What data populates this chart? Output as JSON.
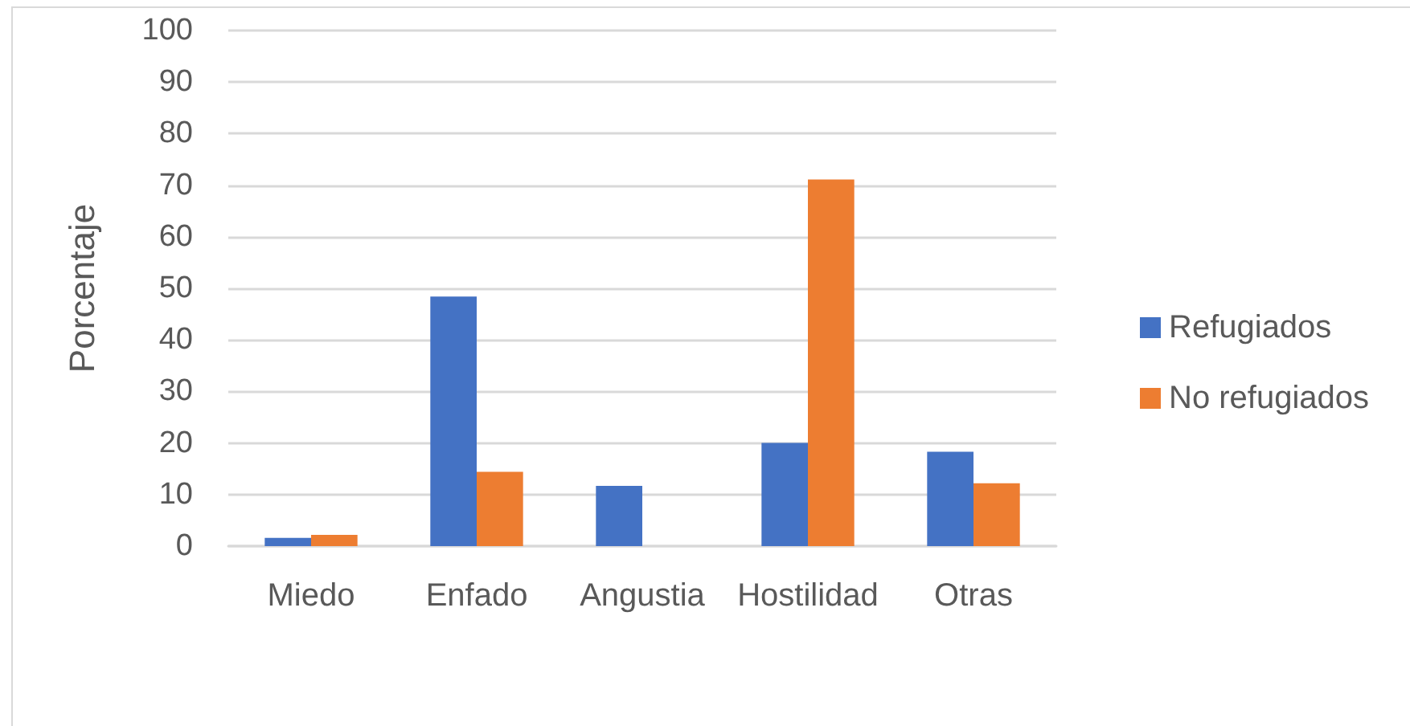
{
  "chart_data": {
    "type": "bar",
    "ylabel": "Porcentaje",
    "categories": [
      "Miedo",
      "Enfado",
      "Angustia",
      "Hostilidad",
      "Otras"
    ],
    "series": [
      {
        "name": "Refugiados",
        "color": "#4472c4",
        "values": [
          1.6,
          48.4,
          11.7,
          20,
          18.3
        ]
      },
      {
        "name": "No refugiados",
        "color": "#ed7d31",
        "values": [
          2.2,
          14.4,
          null,
          71.1,
          12.2
        ]
      }
    ],
    "ylim": [
      0,
      100
    ],
    "yticks": [
      0,
      10,
      20,
      30,
      40,
      50,
      60,
      70,
      80,
      90,
      100
    ],
    "grid": "y",
    "legend": "right"
  }
}
